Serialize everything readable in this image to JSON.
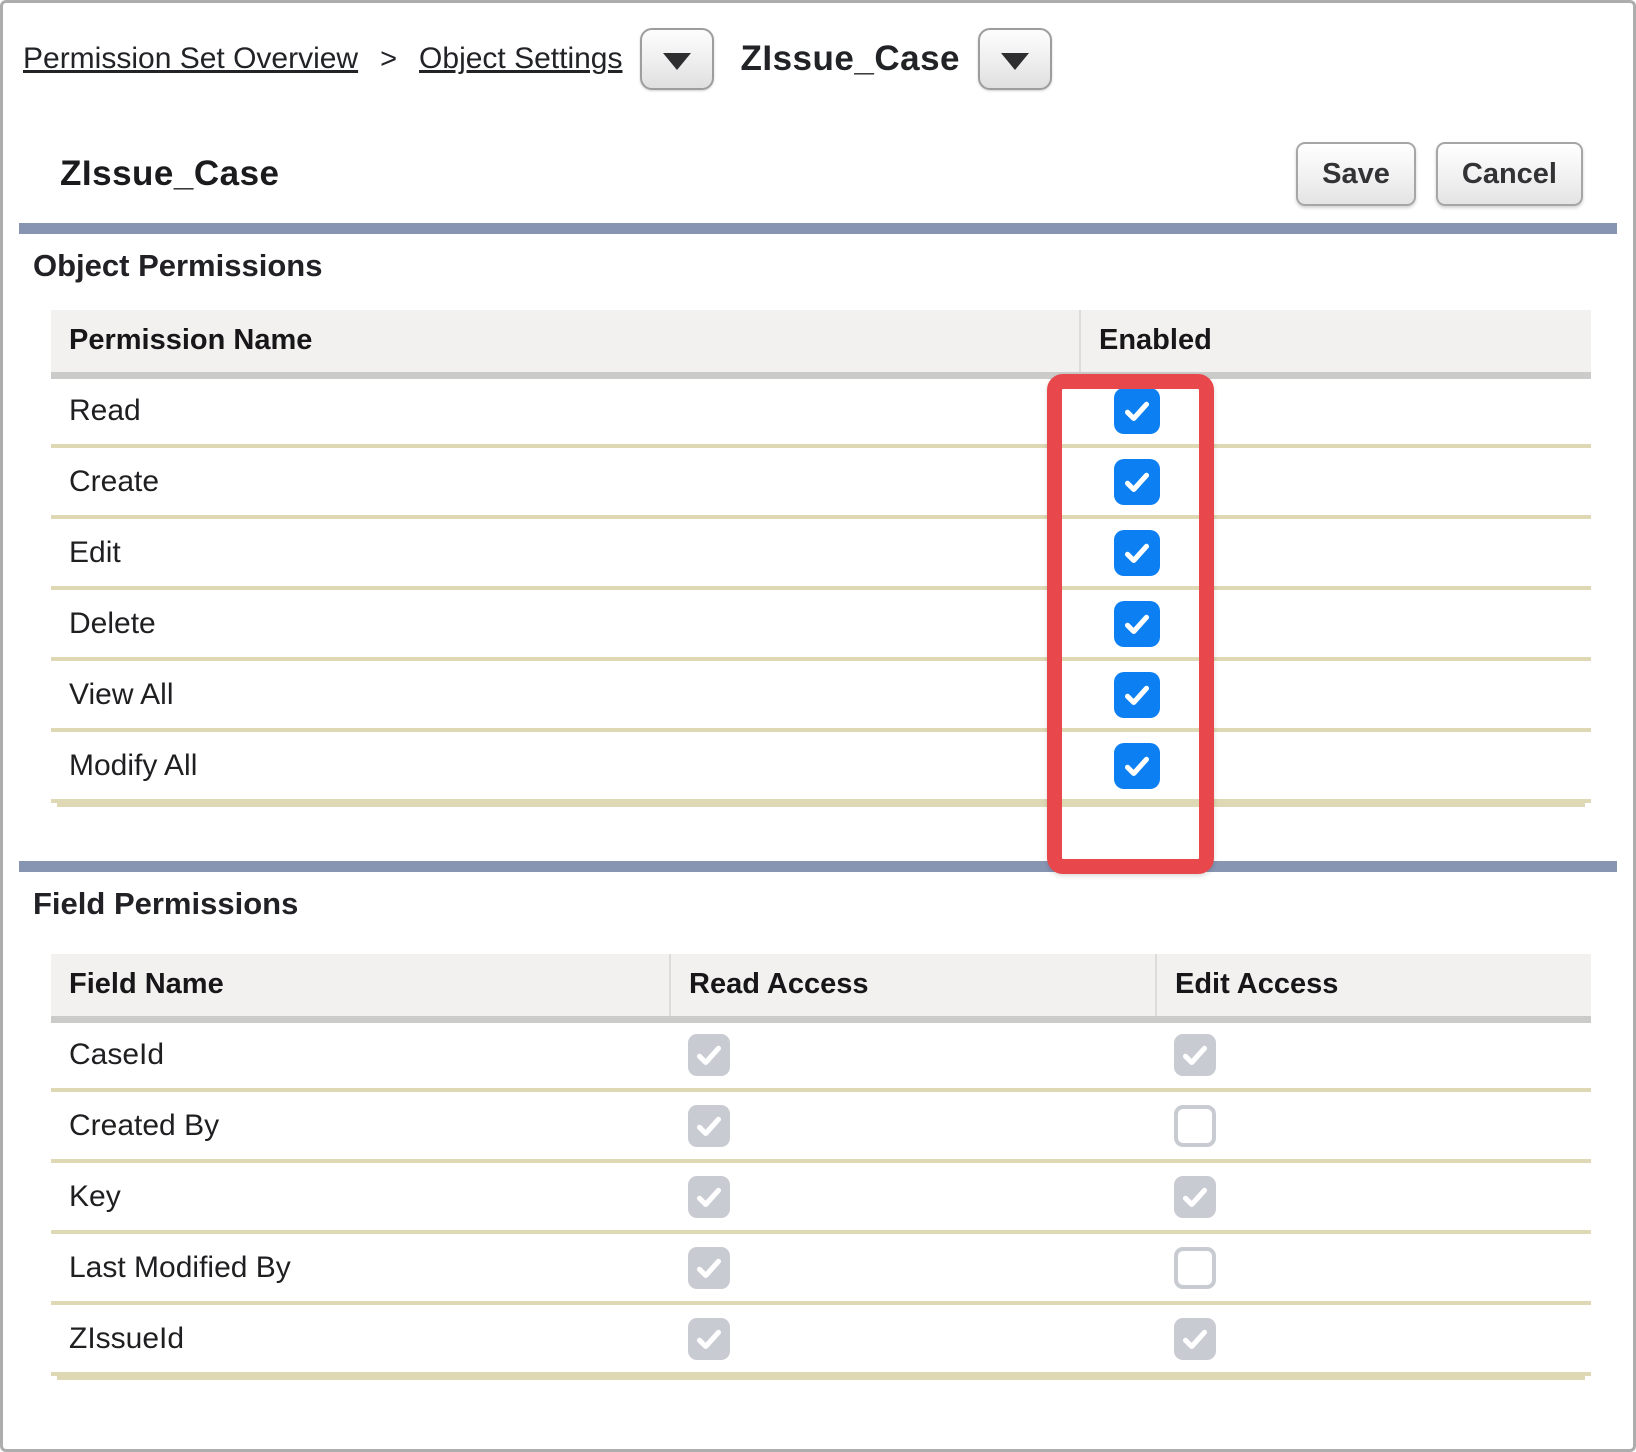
{
  "breadcrumb": {
    "overview_link": "Permission Set Overview",
    "separator": ">",
    "object_settings_link": "Object Settings",
    "entity": "ZIssue_Case"
  },
  "header": {
    "title": "ZIssue_Case",
    "save_label": "Save",
    "cancel_label": "Cancel"
  },
  "object_permissions": {
    "heading": "Object Permissions",
    "columns": [
      "Permission Name",
      "Enabled"
    ],
    "rows": [
      {
        "label": "Read",
        "enabled": true
      },
      {
        "label": "Create",
        "enabled": true
      },
      {
        "label": "Edit",
        "enabled": true
      },
      {
        "label": "Delete",
        "enabled": true
      },
      {
        "label": "View All",
        "enabled": true
      },
      {
        "label": "Modify All",
        "enabled": true
      }
    ]
  },
  "field_permissions": {
    "heading": "Field Permissions",
    "columns": [
      "Field Name",
      "Read Access",
      "Edit Access"
    ],
    "rows": [
      {
        "label": "CaseId",
        "read": "checked_disabled",
        "edit": "checked_disabled"
      },
      {
        "label": "Created By",
        "read": "checked_disabled",
        "edit": "unchecked"
      },
      {
        "label": "Key",
        "read": "checked_disabled",
        "edit": "checked_disabled"
      },
      {
        "label": "Last Modified By",
        "read": "checked_disabled",
        "edit": "unchecked"
      },
      {
        "label": "ZIssueId",
        "read": "checked_disabled",
        "edit": "checked_disabled"
      }
    ]
  },
  "annotations": {
    "highlight_color": "#e8474c",
    "highlight_target": "enabled-column-checkboxes"
  },
  "colors": {
    "checkbox_enabled": "#0c80f2",
    "checkbox_disabled": "#c8cbd2",
    "divider": "#8795b3"
  }
}
